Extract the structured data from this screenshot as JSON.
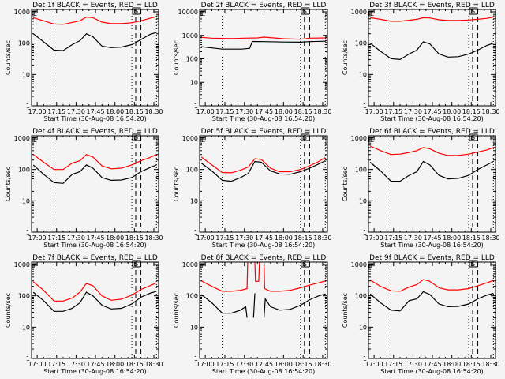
{
  "figure": {
    "background": "#f4f4f4",
    "colors": {
      "events": "#000000",
      "lld": "#ff0000",
      "axes": "#000000"
    }
  },
  "chart_data": [
    {
      "type": "line",
      "panel": 1,
      "title": "Det 1f BLACK = Events, RED = LLD",
      "xlabel": "Start Time (30-Aug-08 16:54:20)",
      "ylabel": "Counts/sec",
      "yscale": "log",
      "ylim": [
        1,
        1000
      ],
      "yticks": [
        "1",
        "10",
        "100",
        "1000"
      ],
      "xticks": [
        "17:00",
        "17:15",
        "17:30",
        "17:45",
        "18:00",
        "18:15",
        "18:30"
      ],
      "markers": [
        "E",
        "S"
      ],
      "series": [
        {
          "name": "Events",
          "color": "#000000",
          "x": [
            "16:57",
            "17:05",
            "17:13",
            "17:20",
            "17:27",
            "17:33",
            "17:38",
            "17:43",
            "17:50",
            "17:57",
            "18:05",
            "18:13",
            "18:20",
            "18:27",
            "18:32"
          ],
          "y": [
            200,
            110,
            60,
            58,
            90,
            120,
            200,
            160,
            80,
            72,
            75,
            90,
            130,
            190,
            220
          ]
        },
        {
          "name": "LLD",
          "color": "#ff0000",
          "x": [
            "16:57",
            "17:05",
            "17:13",
            "17:20",
            "17:27",
            "17:33",
            "17:38",
            "17:43",
            "17:50",
            "17:57",
            "18:05",
            "18:13",
            "18:20",
            "18:27",
            "18:32"
          ],
          "y": [
            650,
            520,
            410,
            400,
            460,
            520,
            680,
            650,
            470,
            420,
            420,
            450,
            520,
            620,
            700
          ]
        }
      ]
    },
    {
      "type": "line",
      "panel": 2,
      "title": "Det 2f BLACK = Events, RED = LLD",
      "xlabel": "Start Time (30-Aug-08 16:54:20)",
      "ylabel": "Counts/sec",
      "yscale": "log",
      "ylim": [
        1,
        10000
      ],
      "yticks": [
        "1",
        "10",
        "100",
        "1000",
        "10000"
      ],
      "xticks": [
        "17:00",
        "17:15",
        "17:30",
        "17:45",
        "18:00",
        "18:15",
        "18:30"
      ],
      "markers": [
        "E",
        "S"
      ],
      "series": [
        {
          "name": "Events",
          "color": "#000000",
          "x": [
            "16:57",
            "17:05",
            "17:13",
            "17:20",
            "17:28",
            "17:34",
            "17:36",
            "17:45",
            "18:00",
            "18:13",
            "18:20",
            "18:32"
          ],
          "y": [
            330,
            290,
            260,
            260,
            260,
            280,
            550,
            540,
            520,
            510,
            540,
            560
          ]
        },
        {
          "name": "LLD",
          "color": "#ff0000",
          "x": [
            "16:57",
            "17:05",
            "17:13",
            "17:20",
            "17:30",
            "17:40",
            "17:45",
            "18:00",
            "18:13",
            "18:20",
            "18:32"
          ],
          "y": [
            820,
            760,
            740,
            730,
            760,
            780,
            840,
            720,
            680,
            760,
            780
          ]
        }
      ]
    },
    {
      "type": "line",
      "panel": 3,
      "title": "Det 3f BLACK = Events, RED = LLD",
      "xlabel": "Start Time (30-Aug-08 16:54:20)",
      "ylabel": "Counts/sec",
      "yscale": "log",
      "ylim": [
        1,
        1000
      ],
      "yticks": [
        "1",
        "10",
        "100",
        "1000"
      ],
      "xticks": [
        "17:00",
        "17:15",
        "17:30",
        "17:45",
        "18:00",
        "18:15",
        "18:30"
      ],
      "markers": [
        "E",
        "S"
      ],
      "series": [
        {
          "name": "Events",
          "color": "#000000",
          "x": [
            "16:57",
            "17:05",
            "17:13",
            "17:20",
            "17:27",
            "17:33",
            "17:38",
            "17:43",
            "17:50",
            "17:57",
            "18:05",
            "18:13",
            "18:20",
            "18:27",
            "18:32"
          ],
          "y": [
            100,
            55,
            32,
            30,
            45,
            60,
            110,
            95,
            45,
            36,
            37,
            45,
            60,
            85,
            100
          ]
        },
        {
          "name": "LLD",
          "color": "#ff0000",
          "x": [
            "16:57",
            "17:05",
            "17:13",
            "17:20",
            "17:27",
            "17:33",
            "17:38",
            "17:43",
            "17:50",
            "17:57",
            "18:05",
            "18:13",
            "18:20",
            "18:27",
            "18:32"
          ],
          "y": [
            650,
            580,
            500,
            500,
            540,
            580,
            650,
            640,
            560,
            530,
            530,
            550,
            580,
            620,
            680
          ]
        }
      ]
    },
    {
      "type": "line",
      "panel": 4,
      "title": "Det 4f BLACK = Events, RED = LLD",
      "xlabel": "Start Time (30-Aug-08 16:54:20)",
      "ylabel": "Counts/sec",
      "yscale": "log",
      "ylim": [
        1,
        1000
      ],
      "yticks": [
        "1",
        "10",
        "100",
        "1000"
      ],
      "xticks": [
        "17:00",
        "17:15",
        "17:30",
        "17:45",
        "18:00",
        "18:15",
        "18:30"
      ],
      "markers": [
        "E",
        "S"
      ],
      "series": [
        {
          "name": "Events",
          "color": "#000000",
          "x": [
            "16:57",
            "17:05",
            "17:13",
            "17:20",
            "17:27",
            "17:33",
            "17:38",
            "17:43",
            "17:50",
            "17:57",
            "18:05",
            "18:13",
            "18:20",
            "18:27",
            "18:32"
          ],
          "y": [
            140,
            70,
            38,
            36,
            70,
            85,
            140,
            110,
            55,
            45,
            46,
            55,
            85,
            115,
            140
          ]
        },
        {
          "name": "LLD",
          "color": "#ff0000",
          "x": [
            "16:57",
            "17:05",
            "17:13",
            "17:20",
            "17:27",
            "17:33",
            "17:38",
            "17:43",
            "17:50",
            "17:57",
            "18:05",
            "18:13",
            "18:20",
            "18:27",
            "18:32"
          ],
          "y": [
            300,
            170,
            100,
            100,
            160,
            190,
            300,
            250,
            130,
            105,
            110,
            140,
            190,
            240,
            300
          ]
        }
      ]
    },
    {
      "type": "line",
      "panel": 5,
      "title": "Det 5f BLACK = Events, RED = LLD",
      "xlabel": "Start Time (30-Aug-08 16:54:20)",
      "ylabel": "Counts/sec",
      "yscale": "log",
      "ylim": [
        1,
        1000
      ],
      "yticks": [
        "1",
        "10",
        "100",
        "1000"
      ],
      "xticks": [
        "17:00",
        "17:15",
        "17:30",
        "17:45",
        "18:00",
        "18:15",
        "18:30"
      ],
      "markers": [
        "E",
        "S"
      ],
      "series": [
        {
          "name": "Events",
          "color": "#000000",
          "x": [
            "16:57",
            "17:05",
            "17:13",
            "17:20",
            "17:27",
            "17:33",
            "17:38",
            "17:43",
            "17:50",
            "17:57",
            "18:05",
            "18:13",
            "18:20",
            "18:27",
            "18:32"
          ],
          "y": [
            160,
            90,
            45,
            42,
            55,
            75,
            180,
            170,
            90,
            72,
            70,
            85,
            110,
            150,
            190
          ]
        },
        {
          "name": "LLD",
          "color": "#ff0000",
          "x": [
            "16:57",
            "17:05",
            "17:13",
            "17:20",
            "17:27",
            "17:33",
            "17:38",
            "17:43",
            "17:50",
            "17:57",
            "18:05",
            "18:13",
            "18:20",
            "18:27",
            "18:32"
          ],
          "y": [
            250,
            140,
            80,
            78,
            95,
            120,
            220,
            210,
            110,
            85,
            85,
            100,
            130,
            180,
            240
          ]
        }
      ]
    },
    {
      "type": "line",
      "panel": 6,
      "title": "Det 6f BLACK = Events, RED = LLD",
      "xlabel": "Start Time (30-Aug-08 16:54:20)",
      "ylabel": "Counts/sec",
      "yscale": "log",
      "ylim": [
        1,
        1000
      ],
      "yticks": [
        "1",
        "10",
        "100",
        "1000"
      ],
      "xticks": [
        "17:00",
        "17:15",
        "17:30",
        "17:45",
        "18:00",
        "18:15",
        "18:30"
      ],
      "markers": [
        "E",
        "S"
      ],
      "series": [
        {
          "name": "Events",
          "color": "#000000",
          "x": [
            "16:57",
            "17:05",
            "17:13",
            "17:20",
            "17:27",
            "17:33",
            "17:38",
            "17:43",
            "17:50",
            "17:57",
            "18:05",
            "18:13",
            "18:20",
            "18:27",
            "18:32"
          ],
          "y": [
            170,
            90,
            42,
            42,
            65,
            85,
            180,
            140,
            65,
            50,
            52,
            65,
            100,
            140,
            180
          ]
        },
        {
          "name": "LLD",
          "color": "#ff0000",
          "x": [
            "16:57",
            "17:05",
            "17:13",
            "17:20",
            "17:27",
            "17:33",
            "17:38",
            "17:43",
            "17:50",
            "17:57",
            "18:05",
            "18:13",
            "18:20",
            "18:27",
            "18:32"
          ],
          "y": [
            560,
            400,
            300,
            310,
            350,
            400,
            500,
            460,
            330,
            280,
            280,
            310,
            360,
            420,
            500
          ]
        }
      ]
    },
    {
      "type": "line",
      "panel": 7,
      "title": "Det 7f BLACK = Events, RED = LLD",
      "xlabel": "Start Time (30-Aug-08 16:54:20)",
      "ylabel": "Counts/sec",
      "yscale": "log",
      "ylim": [
        1,
        1000
      ],
      "yticks": [
        "1",
        "10",
        "100",
        "1000"
      ],
      "xticks": [
        "17:00",
        "17:15",
        "17:30",
        "17:45",
        "18:00",
        "18:15",
        "18:30"
      ],
      "markers": [
        "E",
        "S"
      ],
      "series": [
        {
          "name": "Events",
          "color": "#000000",
          "x": [
            "16:57",
            "17:05",
            "17:13",
            "17:20",
            "17:27",
            "17:33",
            "17:38",
            "17:43",
            "17:50",
            "17:57",
            "18:05",
            "18:13",
            "18:20",
            "18:27",
            "18:32"
          ],
          "y": [
            130,
            70,
            32,
            32,
            40,
            60,
            130,
            100,
            50,
            38,
            40,
            55,
            90,
            120,
            140
          ]
        },
        {
          "name": "LLD",
          "color": "#ff0000",
          "x": [
            "16:57",
            "17:05",
            "17:13",
            "17:20",
            "17:27",
            "17:33",
            "17:38",
            "17:43",
            "17:50",
            "17:57",
            "18:05",
            "18:13",
            "18:20",
            "18:27",
            "18:32"
          ],
          "y": [
            280,
            150,
            68,
            68,
            85,
            130,
            250,
            210,
            100,
            72,
            78,
            105,
            160,
            210,
            260
          ]
        }
      ]
    },
    {
      "type": "line",
      "panel": 8,
      "title": "Det 8f BLACK = Events, RED = LLD",
      "xlabel": "Start Time (30-Aug-08 16:54:20)",
      "ylabel": "Counts/sec",
      "yscale": "log",
      "ylim": [
        1,
        1000
      ],
      "yticks": [
        "1",
        "10",
        "100",
        "1000"
      ],
      "xticks": [
        "17:00",
        "17:15",
        "17:30",
        "17:45",
        "18:00",
        "18:15",
        "18:30"
      ],
      "markers": [
        "E",
        "S"
      ],
      "series": [
        {
          "name": "Events",
          "color": "#000000",
          "x": [
            "16:57",
            "17:05",
            "17:13",
            "17:20",
            "17:27",
            "17:31",
            "17:32",
            "17:37",
            "17:38",
            "17:45",
            "17:46",
            "17:50",
            "17:57",
            "18:05",
            "18:13",
            "18:20",
            "18:27",
            "18:32"
          ],
          "y": [
            110,
            60,
            28,
            28,
            35,
            45,
            20,
            20,
            120,
            20,
            80,
            45,
            35,
            37,
            50,
            75,
            100,
            115
          ],
          "gaps_after_index": [
            6,
            8
          ]
        },
        {
          "name": "LLD",
          "color": "#ff0000",
          "x": [
            "16:57",
            "17:05",
            "17:13",
            "17:20",
            "17:27",
            "17:32",
            "17:32.5",
            "17:38",
            "17:38.5",
            "17:41",
            "17:41.5",
            "17:45",
            "17:45.5",
            "17:50",
            "17:57",
            "18:05",
            "18:13",
            "18:20",
            "18:27",
            "18:32"
          ],
          "y": [
            300,
            200,
            140,
            140,
            150,
            170,
            1200,
            1200,
            290,
            290,
            1200,
            1200,
            170,
            140,
            140,
            150,
            180,
            220,
            260,
            300
          ]
        }
      ]
    },
    {
      "type": "line",
      "panel": 9,
      "title": "Det 9f BLACK = Events, RED = LLD",
      "xlabel": "Start Time (30-Aug-08 16:54:20)",
      "ylabel": "Counts/sec",
      "yscale": "log",
      "ylim": [
        1,
        1000
      ],
      "yticks": [
        "1",
        "10",
        "100",
        "1000"
      ],
      "xticks": [
        "17:00",
        "17:15",
        "17:30",
        "17:45",
        "18:00",
        "18:15",
        "18:30"
      ],
      "markers": [
        "E",
        "S"
      ],
      "series": [
        {
          "name": "Events",
          "color": "#000000",
          "x": [
            "16:57",
            "17:05",
            "17:13",
            "17:20",
            "17:27",
            "17:33",
            "17:38",
            "17:43",
            "17:50",
            "17:57",
            "18:05",
            "18:13",
            "18:20",
            "18:27",
            "18:32"
          ],
          "y": [
            115,
            60,
            35,
            33,
            70,
            80,
            135,
            110,
            55,
            45,
            46,
            55,
            80,
            105,
            120
          ]
        },
        {
          "name": "LLD",
          "color": "#ff0000",
          "x": [
            "16:57",
            "17:05",
            "17:13",
            "17:20",
            "17:27",
            "17:33",
            "17:38",
            "17:43",
            "17:50",
            "17:57",
            "18:05",
            "18:13",
            "18:20",
            "18:27",
            "18:32"
          ],
          "y": [
            320,
            200,
            145,
            140,
            190,
            230,
            330,
            290,
            180,
            155,
            155,
            170,
            210,
            260,
            310
          ]
        }
      ]
    }
  ],
  "vertical_lines": [
    {
      "time": "17:13",
      "style": "dotted"
    },
    {
      "time": "18:13",
      "style": "dotted"
    },
    {
      "time": "18:16",
      "style": "dashed"
    },
    {
      "time": "18:20",
      "style": "dashed"
    },
    {
      "time": "18:32",
      "style": "dotted"
    }
  ],
  "x_range": [
    "16:55:40",
    "18:33:40"
  ]
}
